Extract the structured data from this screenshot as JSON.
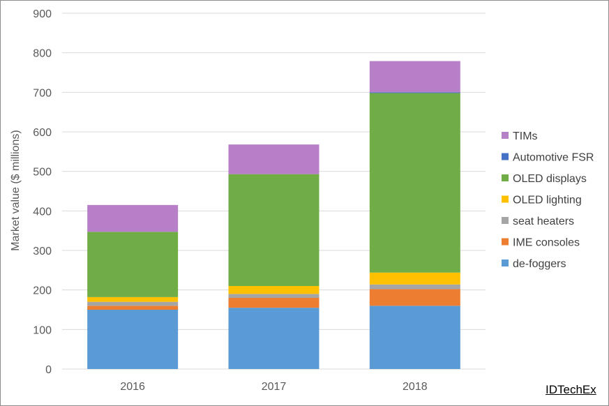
{
  "chart_data": {
    "type": "bar",
    "stacked": true,
    "categories": [
      "2016",
      "2017",
      "2018"
    ],
    "ylabel": "Market value ($ millions)",
    "xlabel": "",
    "ylim": [
      0,
      900
    ],
    "yticks": [
      0,
      100,
      200,
      300,
      400,
      500,
      600,
      700,
      800,
      900
    ],
    "grid": true,
    "legend_position": "right",
    "series": [
      {
        "name": "de-foggers",
        "color": "#5b9bd5",
        "values": [
          150,
          155,
          160
        ]
      },
      {
        "name": "IME consoles",
        "color": "#ed7d31",
        "values": [
          10,
          25,
          42
        ]
      },
      {
        "name": "seat heaters",
        "color": "#a5a5a5",
        "values": [
          10,
          10,
          12
        ]
      },
      {
        "name": "OLED lighting",
        "color": "#ffc000",
        "values": [
          12,
          20,
          30
        ]
      },
      {
        "name": "OLED displays",
        "color": "#70ad47",
        "values": [
          165,
          283,
          454
        ]
      },
      {
        "name": "Automotive FSR",
        "color": "#4472c4",
        "values": [
          0,
          0,
          2
        ]
      },
      {
        "name": "TIMs",
        "color": "#b87fc9",
        "values": [
          68,
          75,
          79
        ]
      }
    ]
  },
  "brand": "IDTechEx"
}
